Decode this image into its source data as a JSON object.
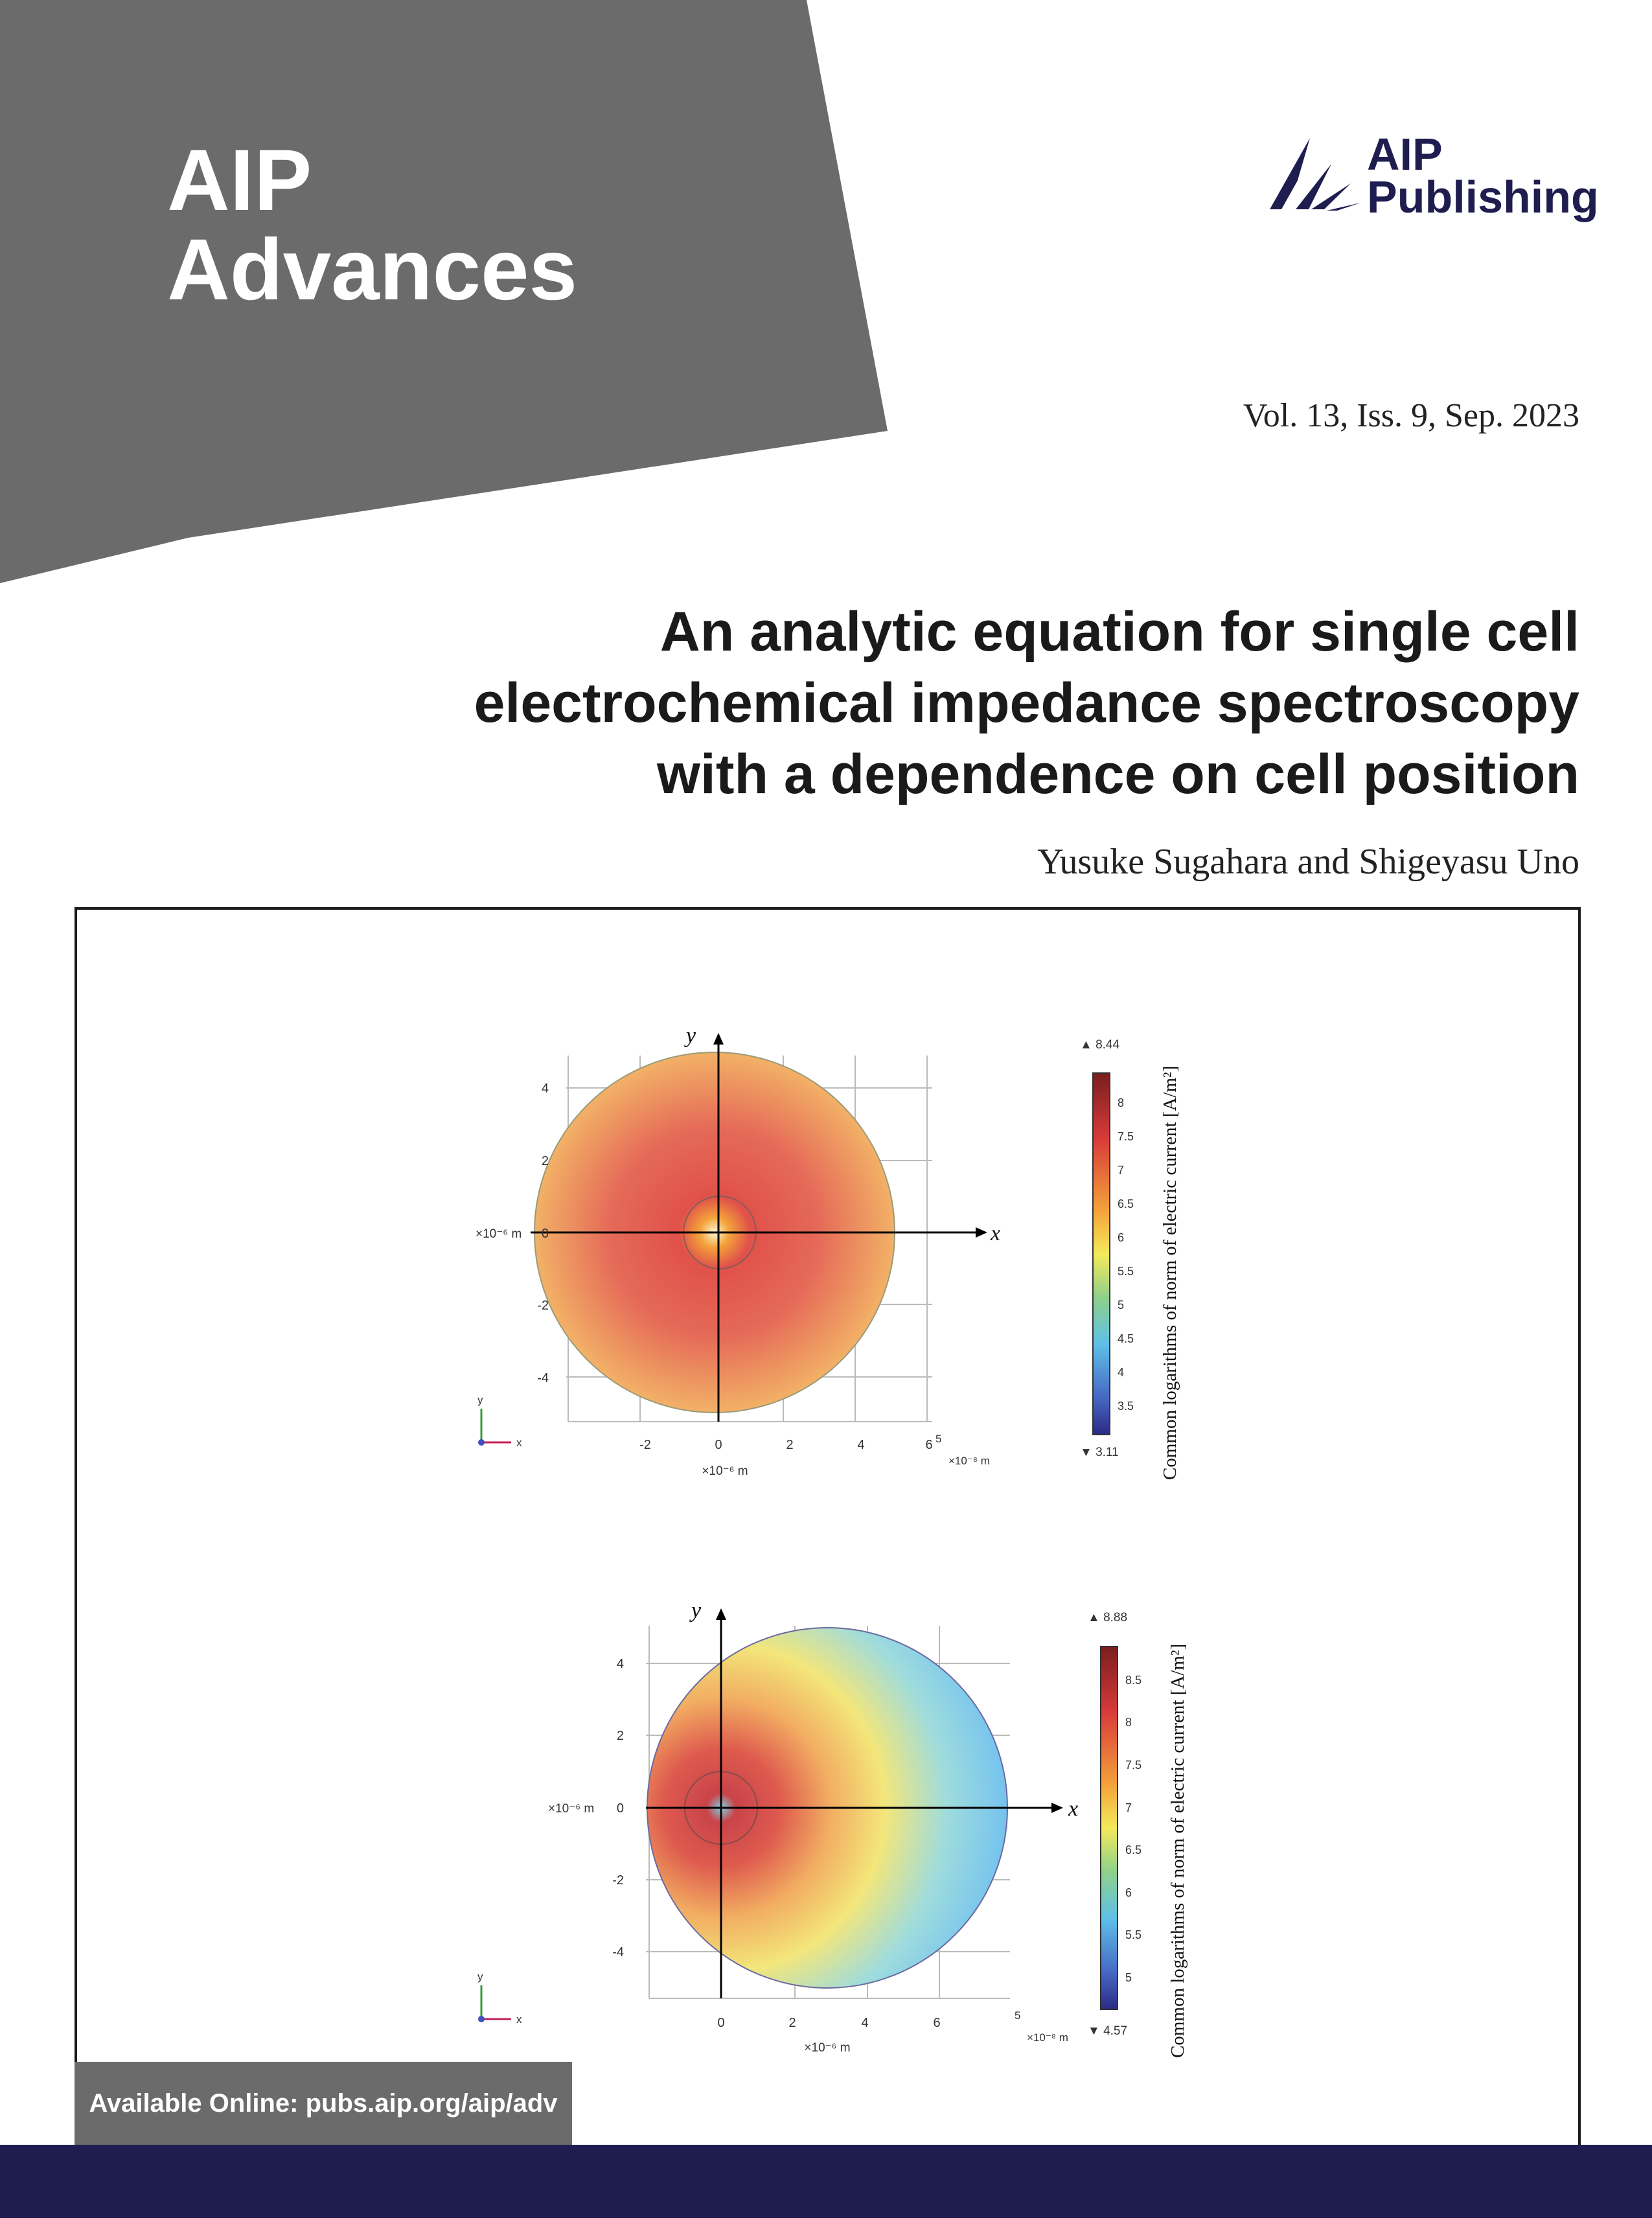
{
  "cover": {
    "journal_line1": "AIP",
    "journal_line2": "Advances",
    "publisher_line1": "AIP",
    "publisher_line2": "Publishing",
    "volume": "Vol. 13, Iss. 9, Sep. 2023",
    "title_line1": "An analytic equation for single cell",
    "title_line2": "electrochemical impedance spectroscopy",
    "title_line3": "with a dependence on cell position",
    "authors": "Yusuke Sugahara and Shigeyasu Uno",
    "online": "Available Online: pubs.aip.org/aip/adv",
    "colors": {
      "banner": "#6b6b6b",
      "navy": "#1f1d4f"
    }
  },
  "figures": [
    {
      "type": "heatmap",
      "x_axis_label": "x",
      "y_axis_label": "y",
      "x_ticks": [
        "-2",
        "0",
        "2",
        "4",
        "6"
      ],
      "y_ticks": [
        "4",
        "2",
        "0",
        "-2",
        "-4"
      ],
      "x_unit": "×10⁻⁶ m",
      "y_unit": "×10⁻⁶ m",
      "corner_exponent": "5",
      "corner_unit": "×10⁻⁸ m",
      "triad_y": "y",
      "triad_x": "x",
      "colorbar_max": "▲ 8.44",
      "colorbar_min": "▼ 3.11",
      "colorbar_ticks": [
        "8",
        "7.5",
        "7",
        "6.5",
        "6",
        "5.5",
        "5",
        "4.5",
        "4",
        "3.5"
      ],
      "colorbar_label": "Common logarithms of norm of electric current [A/m²]"
    },
    {
      "type": "heatmap",
      "x_axis_label": "x",
      "y_axis_label": "y",
      "x_ticks": [
        "0",
        "2",
        "4",
        "6"
      ],
      "y_ticks": [
        "4",
        "2",
        "0",
        "-2",
        "-4"
      ],
      "x_unit": "×10⁻⁶ m",
      "y_unit": "×10⁻⁶ m",
      "corner_exponent": "5",
      "corner_unit": "×10⁻⁸ m",
      "triad_y": "y",
      "triad_x": "x",
      "colorbar_max": "▲ 8.88",
      "colorbar_min": "▼ 4.57",
      "colorbar_ticks": [
        "8.5",
        "8",
        "7.5",
        "7",
        "6.5",
        "6",
        "5.5",
        "5"
      ],
      "colorbar_label": "Common logarithms of norm of electric current [A/m²]"
    }
  ]
}
